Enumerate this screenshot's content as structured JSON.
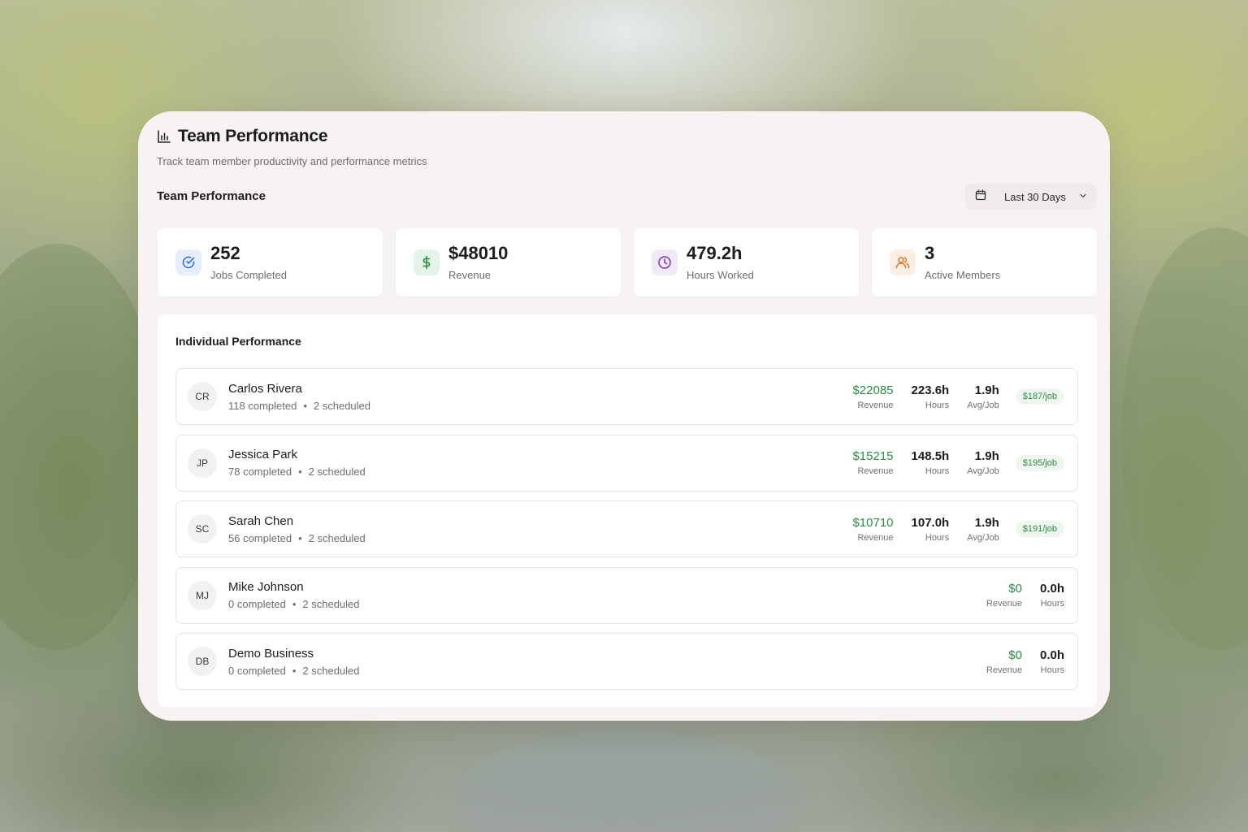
{
  "header": {
    "title": "Team Performance",
    "subtitle": "Track team member productivity and performance metrics"
  },
  "section": {
    "title": "Team Performance",
    "date_range": "Last 30 Days"
  },
  "stats": [
    {
      "value": "252",
      "label": "Jobs Completed",
      "icon": "check-circle-icon",
      "color": "#3b6fd8",
      "bg": "#e6eefc"
    },
    {
      "value": "$48010",
      "label": "Revenue",
      "icon": "dollar-icon",
      "color": "#2e8b43",
      "bg": "#e5f4e8"
    },
    {
      "value": "479.2h",
      "label": "Hours Worked",
      "icon": "clock-icon",
      "color": "#7a3fb0",
      "bg": "#f1e8f8"
    },
    {
      "value": "3",
      "label": "Active Members",
      "icon": "users-icon",
      "color": "#d8782a",
      "bg": "#fcefe2"
    }
  ],
  "individual": {
    "title": "Individual Performance",
    "members": [
      {
        "initials": "CR",
        "name": "Carlos Rivera",
        "completed": "118 completed",
        "scheduled": "2 scheduled",
        "revenue": "$22085",
        "revenue_label": "Revenue",
        "hours": "223.6h",
        "hours_label": "Hours",
        "avg": "1.9h",
        "avg_label": "Avg/Job",
        "rate": "$187/job"
      },
      {
        "initials": "JP",
        "name": "Jessica Park",
        "completed": "78 completed",
        "scheduled": "2 scheduled",
        "revenue": "$15215",
        "revenue_label": "Revenue",
        "hours": "148.5h",
        "hours_label": "Hours",
        "avg": "1.9h",
        "avg_label": "Avg/Job",
        "rate": "$195/job"
      },
      {
        "initials": "SC",
        "name": "Sarah Chen",
        "completed": "56 completed",
        "scheduled": "2 scheduled",
        "revenue": "$10710",
        "revenue_label": "Revenue",
        "hours": "107.0h",
        "hours_label": "Hours",
        "avg": "1.9h",
        "avg_label": "Avg/Job",
        "rate": "$191/job"
      },
      {
        "initials": "MJ",
        "name": "Mike Johnson",
        "completed": "0 completed",
        "scheduled": "2 scheduled",
        "revenue": "$0",
        "revenue_label": "Revenue",
        "hours": "0.0h",
        "hours_label": "Hours"
      },
      {
        "initials": "DB",
        "name": "Demo Business",
        "completed": "0 completed",
        "scheduled": "2 scheduled",
        "revenue": "$0",
        "revenue_label": "Revenue",
        "hours": "0.0h",
        "hours_label": "Hours"
      }
    ]
  }
}
